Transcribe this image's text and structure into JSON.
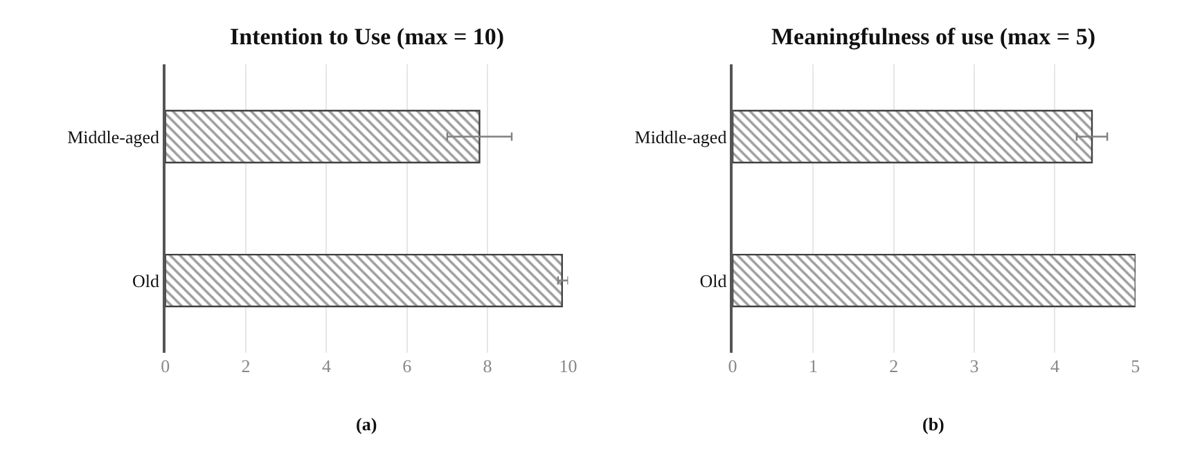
{
  "chart_data": [
    {
      "type": "bar",
      "orientation": "horizontal",
      "title": "Intention to Use (max = 10)",
      "categories": [
        "Middle-aged",
        "Old"
      ],
      "values": [
        7.8,
        9.85
      ],
      "color": "#404040",
      "errors": [
        [
          7.0,
          8.6
        ],
        [
          9.75,
          10.0
        ]
      ],
      "xlim": [
        0,
        10
      ],
      "xticks": [
        0,
        2,
        4,
        6,
        8,
        10
      ],
      "grid": "x",
      "annotations": [
        "(a)"
      ]
    },
    {
      "type": "bar",
      "orientation": "horizontal",
      "title": "Meaningfulness of use (max = 5)",
      "categories": [
        "Middle-aged",
        "Old"
      ],
      "values": [
        4.46,
        5.0
      ],
      "color": "#404040",
      "errors": [
        [
          4.27,
          4.65
        ],
        null
      ],
      "xlim": [
        0,
        5
      ],
      "xticks": [
        0,
        1,
        2,
        3,
        4,
        5
      ],
      "grid": "x",
      "annotations": [
        "(b)"
      ]
    }
  ]
}
